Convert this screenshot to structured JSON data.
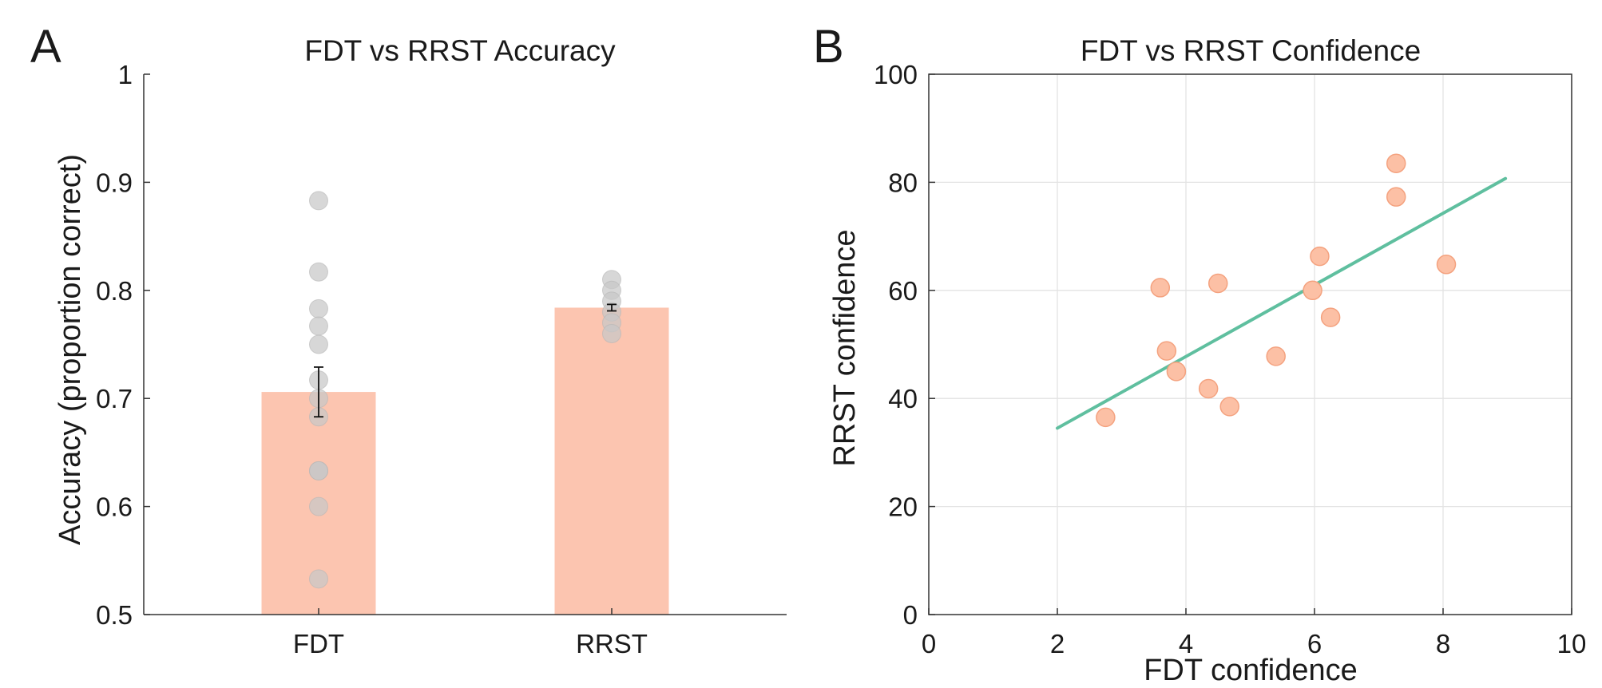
{
  "figure": {
    "panel_a_letter": "A",
    "panel_b_letter": "B"
  },
  "chart_data": [
    {
      "type": "bar",
      "title": "FDT vs RRST Accuracy",
      "xlabel": "",
      "ylabel": "Accuracy (proportion correct)",
      "categories": [
        "FDT",
        "RRST"
      ],
      "values": [
        0.706,
        0.784
      ],
      "error": [
        0.023,
        0.003
      ],
      "ylim": [
        0.5,
        1
      ],
      "yticks": [
        0.5,
        0.6,
        0.7,
        0.8,
        0.9,
        1
      ],
      "ytick_labels": [
        "0.5",
        "0.6",
        "0.7",
        "0.8",
        "0.9",
        "1"
      ],
      "grid": false,
      "bar_color": "#fcc5b0",
      "point_color": "#c8c8c8",
      "individual_points": {
        "FDT": [
          0.883,
          0.817,
          0.783,
          0.767,
          0.75,
          0.717,
          0.7,
          0.683,
          0.633,
          0.633,
          0.6,
          0.533
        ],
        "RRST": [
          0.81,
          0.8,
          0.79,
          0.78,
          0.77,
          0.76
        ]
      }
    },
    {
      "type": "scatter",
      "title": "FDT vs RRST Confidence",
      "xlabel": "FDT confidence",
      "ylabel": "RRST confidence",
      "xlim": [
        0,
        10
      ],
      "ylim": [
        0,
        100
      ],
      "xticks": [
        0,
        2,
        4,
        6,
        8,
        10
      ],
      "yticks": [
        0,
        20,
        40,
        60,
        80,
        100
      ],
      "grid": true,
      "point_color": "#fcc0a5",
      "point_edge_color": "#f4a27f",
      "line_color": "#5fbf9f",
      "points": [
        {
          "x": 2.75,
          "y": 36.5
        },
        {
          "x": 3.6,
          "y": 60.5
        },
        {
          "x": 3.7,
          "y": 48.8
        },
        {
          "x": 3.85,
          "y": 45.0
        },
        {
          "x": 4.35,
          "y": 41.8
        },
        {
          "x": 4.5,
          "y": 61.3
        },
        {
          "x": 4.68,
          "y": 38.5
        },
        {
          "x": 5.4,
          "y": 47.8
        },
        {
          "x": 5.97,
          "y": 60.0
        },
        {
          "x": 6.08,
          "y": 66.3
        },
        {
          "x": 6.25,
          "y": 55.0
        },
        {
          "x": 7.27,
          "y": 83.5
        },
        {
          "x": 7.27,
          "y": 77.3
        },
        {
          "x": 8.05,
          "y": 64.8
        }
      ],
      "fit_line": {
        "x": [
          2.0,
          8.97
        ],
        "y": [
          34.5,
          80.7
        ]
      }
    }
  ]
}
